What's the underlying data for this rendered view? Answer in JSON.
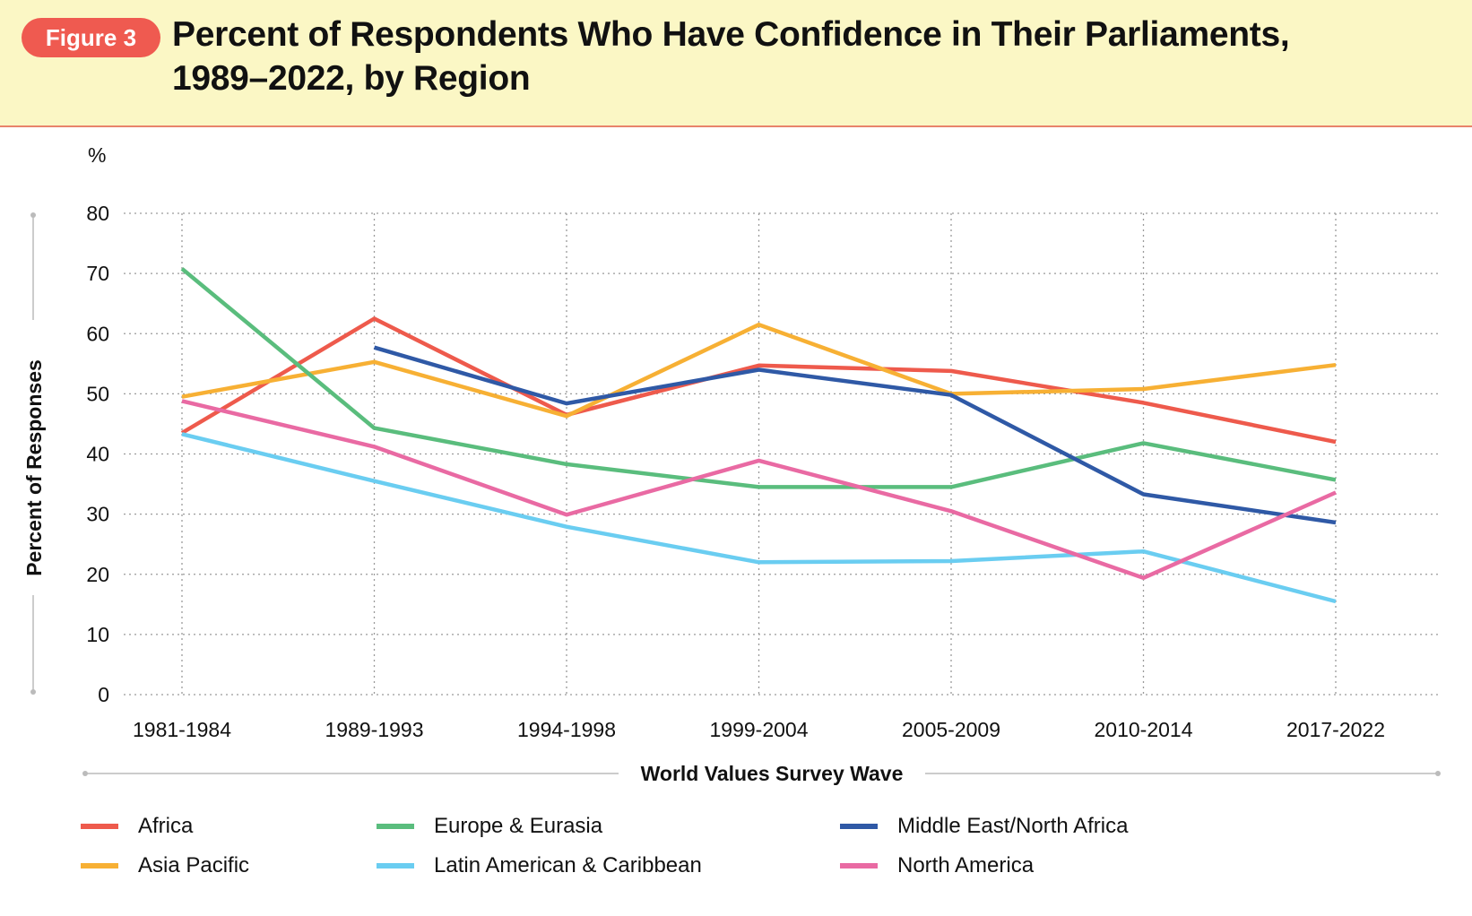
{
  "figure": {
    "badge": "Figure 3",
    "title": "Percent of Respondents Who Have Confidence in Their Parliaments,\n1989–2022, by Region"
  },
  "chart_data": {
    "type": "line",
    "title": "Percent of Respondents Who Have Confidence in Their Parliaments, 1989–2022, by Region",
    "xlabel": "World Values Survey Wave",
    "ylabel": "Percent of Responses",
    "yunit": "%",
    "ylim": [
      0,
      80
    ],
    "yticks": [
      0,
      10,
      20,
      30,
      40,
      50,
      60,
      70,
      80
    ],
    "grid": true,
    "legend_position": "bottom",
    "categories": [
      "1981-1984",
      "1989-1993",
      "1994-1998",
      "1999-2004",
      "2005-2009",
      "2010-2014",
      "2017-2022"
    ],
    "series": [
      {
        "name": "Africa",
        "color": "#ee5a4c",
        "values": [
          43.5,
          62.5,
          46.5,
          54.7,
          53.8,
          48.5,
          42.0
        ]
      },
      {
        "name": "Asia Pacific",
        "color": "#f7b034",
        "values": [
          49.5,
          55.3,
          46.3,
          61.5,
          50.0,
          50.8,
          54.8
        ]
      },
      {
        "name": "Europe & Eurasia",
        "color": "#5abd7d",
        "values": [
          70.8,
          44.3,
          38.3,
          34.5,
          34.5,
          41.8,
          35.7
        ]
      },
      {
        "name": "Latin American & Caribbean",
        "color": "#6acdf1",
        "values": [
          43.3,
          35.5,
          27.9,
          22.0,
          22.2,
          23.8,
          15.5
        ]
      },
      {
        "name": "Middle East/North Africa",
        "color": "#2f59a6",
        "values": [
          null,
          57.7,
          48.4,
          54.0,
          49.8,
          33.3,
          28.6
        ]
      },
      {
        "name": "North America",
        "color": "#e96aa3",
        "values": [
          48.8,
          41.2,
          29.9,
          38.9,
          30.5,
          19.4,
          33.6
        ]
      }
    ]
  },
  "legend": {
    "items": [
      {
        "label": "Africa",
        "color": "#ee5a4c"
      },
      {
        "label": "Europe & Eurasia",
        "color": "#5abd7d"
      },
      {
        "label": "Middle East/North Africa",
        "color": "#2f59a6"
      },
      {
        "label": "Asia Pacific",
        "color": "#f7b034"
      },
      {
        "label": "Latin American & Caribbean",
        "color": "#6acdf1"
      },
      {
        "label": "North America",
        "color": "#e96aa3"
      }
    ]
  }
}
